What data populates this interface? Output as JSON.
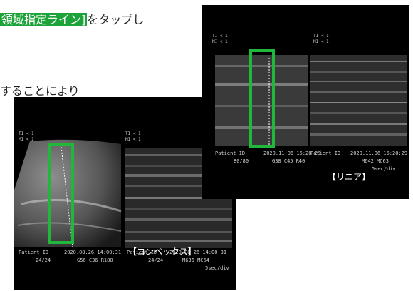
{
  "captions": {
    "line1_highlight": "領域指定ライン]",
    "line1_rest": "をタップし",
    "line2": "することにより"
  },
  "convex": {
    "ti_left": "TI < 1",
    "mi_left": "MI < 1",
    "ti_right": "TI < 1",
    "mi_right": "MI < 1",
    "patient_left": "Patient ID",
    "datetime_left": "2020.08.26 14:00:31",
    "patient_right": "Patient ID",
    "datetime_right": "2020.08.26 14:00:31",
    "frames": "24/24",
    "params_left": "G56  C36 R180",
    "frames_right": "24/24",
    "params_right": "M636  MC64",
    "speed": "5sec/div",
    "label": "【コンベックス】"
  },
  "linear": {
    "ti_left": "TI < 1",
    "mi_left": "MI < 1",
    "ti_right": "TI < 1",
    "mi_right": "MI < 1",
    "patient_left": "Patient ID",
    "datetime_left": "2020.11.06 15:20:29",
    "patient_right": "Patient ID",
    "datetime_right": "2020.11.06 15:20:29",
    "frames": "80/80",
    "params_left": "G38  C45  R40",
    "params_right": "M642  MC63",
    "speed": "5sec/div",
    "label": "【リニア】"
  },
  "colors": {
    "accent": "#1fb83b",
    "background": "#000000"
  }
}
